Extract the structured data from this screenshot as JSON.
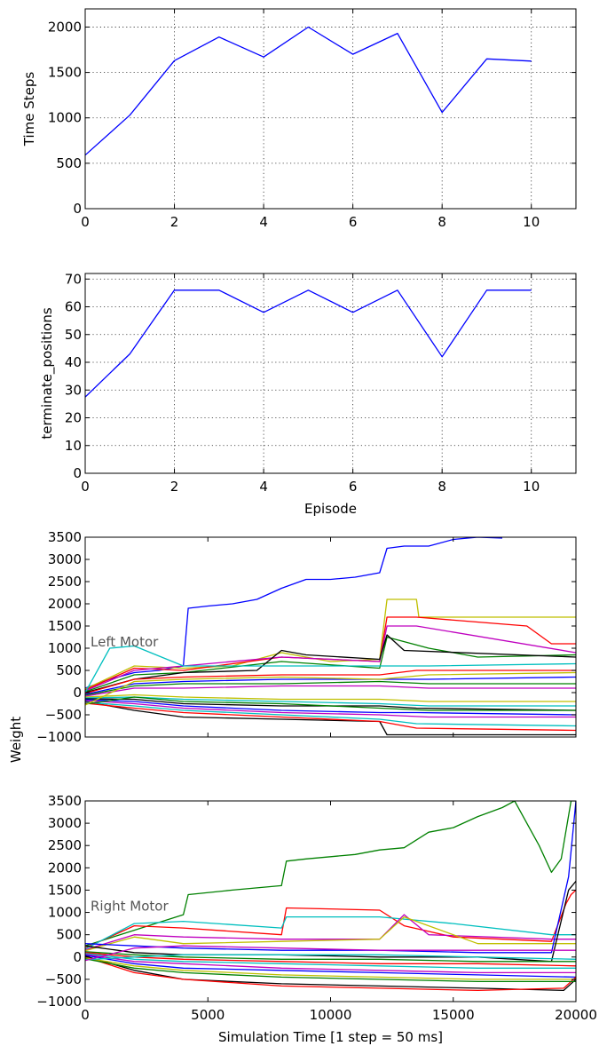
{
  "chart_data": [
    {
      "type": "line",
      "ylabel": "Time Steps",
      "xlabel": "",
      "xlim": [
        0,
        11
      ],
      "ylim": [
        0,
        2200
      ],
      "xticks": [
        0,
        2,
        4,
        6,
        8,
        10
      ],
      "yticks": [
        0,
        500,
        1000,
        1500,
        2000
      ],
      "grid": true,
      "series": [
        {
          "color": "#0000ff",
          "x": [
            0,
            1,
            2,
            3,
            4,
            5,
            6,
            7,
            8,
            9,
            10
          ],
          "y": [
            590,
            1030,
            1630,
            1890,
            1670,
            2000,
            1700,
            1930,
            1060,
            1650,
            1625
          ]
        }
      ]
    },
    {
      "type": "line",
      "ylabel": "terminate_positions",
      "xlabel": "Episode",
      "xlim": [
        0,
        11
      ],
      "ylim": [
        0,
        72
      ],
      "xticks": [
        0,
        2,
        4,
        6,
        8,
        10
      ],
      "yticks": [
        0,
        10,
        20,
        30,
        40,
        50,
        60,
        70
      ],
      "grid": true,
      "series": [
        {
          "color": "#0000ff",
          "x": [
            0,
            1,
            2,
            3,
            4,
            5,
            6,
            7,
            8,
            9,
            10
          ],
          "y": [
            27.5,
            43,
            66,
            66,
            58,
            66,
            58,
            66,
            42,
            66,
            66
          ]
        }
      ]
    },
    {
      "type": "line",
      "ylabel": "Weight",
      "annotation": "Left Motor",
      "xlim": [
        0,
        20000
      ],
      "ylim": [
        -1000,
        3500
      ],
      "yticks": [
        -1000,
        -500,
        0,
        500,
        1000,
        1500,
        2000,
        2500,
        3000,
        3500
      ],
      "grid": false,
      "series": [
        {
          "color": "#0000ff",
          "x": [
            0,
            1000,
            2000,
            3000,
            4000,
            4200,
            5000,
            6000,
            7000,
            8000,
            9000,
            10000,
            11000,
            12000,
            12300,
            13000,
            14000,
            15000,
            16000,
            17000
          ],
          "y": [
            100,
            300,
            450,
            500,
            600,
            1900,
            1950,
            2000,
            2100,
            2350,
            2550,
            2550,
            2600,
            2700,
            3250,
            3300,
            3300,
            3450,
            3500,
            3480
          ]
        },
        {
          "color": "#bfbf00",
          "x": [
            0,
            2000,
            4000,
            6000,
            8000,
            10000,
            12000,
            12300,
            13500,
            13600,
            20000
          ],
          "y": [
            80,
            600,
            550,
            600,
            900,
            700,
            750,
            2100,
            2100,
            1700,
            1700
          ]
        },
        {
          "color": "#ff0000",
          "x": [
            0,
            2000,
            4000,
            8000,
            12000,
            12300,
            13500,
            18000,
            19000,
            20000
          ],
          "y": [
            60,
            550,
            500,
            800,
            700,
            1700,
            1700,
            1500,
            1100,
            1100
          ]
        },
        {
          "color": "#bf00bf",
          "x": [
            0,
            2000,
            4000,
            8000,
            12000,
            12300,
            13500,
            20000
          ],
          "y": [
            40,
            500,
            600,
            800,
            700,
            1500,
            1500,
            900
          ]
        },
        {
          "color": "#008000",
          "x": [
            0,
            2000,
            4000,
            8000,
            12000,
            12300,
            14000,
            16000,
            20000
          ],
          "y": [
            20,
            400,
            450,
            700,
            550,
            1250,
            1000,
            800,
            850
          ]
        },
        {
          "color": "#000000",
          "x": [
            0,
            2000,
            4000,
            7000,
            8000,
            9000,
            12000,
            12300,
            13000,
            20000
          ],
          "y": [
            0,
            300,
            450,
            500,
            950,
            850,
            750,
            1300,
            950,
            800
          ]
        },
        {
          "color": "#00bfbf",
          "x": [
            0,
            1000,
            2000,
            4000,
            8000,
            12000,
            14000,
            20000
          ],
          "y": [
            0,
            1000,
            1050,
            600,
            600,
            600,
            600,
            650
          ]
        },
        {
          "color": "#ff0000",
          "x": [
            0,
            2000,
            4000,
            8000,
            12000,
            13500,
            20000
          ],
          "y": [
            -20,
            300,
            350,
            400,
            400,
            500,
            500
          ]
        },
        {
          "color": "#0000ff",
          "x": [
            0,
            2000,
            4000,
            8000,
            12000,
            14000,
            20000
          ],
          "y": [
            -40,
            200,
            250,
            300,
            300,
            300,
            350
          ]
        },
        {
          "color": "#008000",
          "x": [
            0,
            2000,
            4000,
            8000,
            12000,
            14000,
            20000
          ],
          "y": [
            -60,
            150,
            200,
            200,
            250,
            200,
            200
          ]
        },
        {
          "color": "#bf00bf",
          "x": [
            0,
            2000,
            4000,
            8000,
            12000,
            14000,
            20000
          ],
          "y": [
            -80,
            100,
            100,
            150,
            150,
            100,
            100
          ]
        },
        {
          "color": "#bfbf00",
          "x": [
            0,
            2000,
            4000,
            8000,
            12000,
            14000,
            20000
          ],
          "y": [
            -100,
            -50,
            -100,
            -150,
            -150,
            -200,
            -200
          ]
        },
        {
          "color": "#00bfbf",
          "x": [
            0,
            2000,
            4000,
            8000,
            12000,
            14000,
            20000
          ],
          "y": [
            -120,
            -100,
            -150,
            -200,
            -250,
            -300,
            -300
          ]
        },
        {
          "color": "#000000",
          "x": [
            0,
            2000,
            4000,
            8000,
            12000,
            13500,
            20000
          ],
          "y": [
            -140,
            -150,
            -250,
            -300,
            -300,
            -350,
            -400
          ]
        },
        {
          "color": "#0000ff",
          "x": [
            0,
            2000,
            4000,
            8000,
            12000,
            13500,
            20000
          ],
          "y": [
            -160,
            -200,
            -300,
            -400,
            -450,
            -450,
            -500
          ]
        },
        {
          "color": "#bf00bf",
          "x": [
            0,
            2000,
            4000,
            8000,
            12000,
            14000,
            20000
          ],
          "y": [
            -180,
            -250,
            -350,
            -450,
            -500,
            -550,
            -550
          ]
        },
        {
          "color": "#000000",
          "x": [
            0,
            2000,
            4000,
            8000,
            12000,
            12300,
            14000,
            20000
          ],
          "y": [
            -200,
            -400,
            -550,
            -600,
            -650,
            -950,
            -950,
            -950
          ]
        },
        {
          "color": "#00bfbf",
          "x": [
            0,
            2000,
            4000,
            8000,
            12000,
            13500,
            20000
          ],
          "y": [
            -220,
            -300,
            -400,
            -500,
            -600,
            -700,
            -750
          ]
        },
        {
          "color": "#ff0000",
          "x": [
            0,
            2000,
            4000,
            8000,
            12000,
            13500,
            20000
          ],
          "y": [
            -240,
            -350,
            -450,
            -550,
            -650,
            -800,
            -850
          ]
        },
        {
          "color": "#008000",
          "x": [
            0,
            2000,
            4000,
            8000,
            12000,
            14000,
            20000
          ],
          "y": [
            -260,
            -100,
            -200,
            -250,
            -350,
            -400,
            -400
          ]
        },
        {
          "color": "#bfbf00",
          "x": [
            0,
            2000,
            4000,
            8000,
            12000,
            14000,
            20000
          ],
          "y": [
            -280,
            250,
            300,
            350,
            300,
            400,
            450
          ]
        }
      ]
    },
    {
      "type": "line",
      "annotation": "Right Motor",
      "xlabel": "Simulation Time [1 step = 50 ms]",
      "xlim": [
        0,
        20000
      ],
      "ylim": [
        -1000,
        3500
      ],
      "xticks": [
        0,
        5000,
        10000,
        15000,
        20000
      ],
      "yticks": [
        -1000,
        -500,
        0,
        500,
        1000,
        1500,
        2000,
        2500,
        3000,
        3500
      ],
      "grid": false,
      "series": [
        {
          "color": "#008000",
          "x": [
            0,
            2000,
            4000,
            4200,
            6000,
            7000,
            8000,
            8200,
            9000,
            10000,
            11000,
            12000,
            13000,
            14000,
            15000,
            16000,
            17000,
            17500,
            18500,
            19000,
            19400,
            19800,
            20000
          ],
          "y": [
            250,
            600,
            950,
            1400,
            1500,
            1550,
            1600,
            2150,
            2200,
            2250,
            2300,
            2400,
            2450,
            2800,
            2900,
            3150,
            3350,
            3500,
            2500,
            1900,
            2200,
            3500,
            3500
          ]
        },
        {
          "color": "#ff0000",
          "x": [
            0,
            2000,
            4000,
            8000,
            8200,
            12000,
            13000,
            15000,
            17000,
            19000,
            19600,
            19800,
            20000
          ],
          "y": [
            200,
            700,
            650,
            500,
            1100,
            1050,
            700,
            450,
            400,
            350,
            1200,
            1400,
            1500
          ]
        },
        {
          "color": "#00bfbf",
          "x": [
            0,
            2000,
            4000,
            8000,
            8200,
            12000,
            15000,
            19000,
            20000
          ],
          "y": [
            180,
            750,
            800,
            650,
            900,
            900,
            750,
            500,
            500
          ]
        },
        {
          "color": "#bf00bf",
          "x": [
            0,
            2000,
            4000,
            8000,
            12000,
            13000,
            14000,
            19000,
            20000
          ],
          "y": [
            160,
            500,
            450,
            400,
            400,
            950,
            500,
            400,
            400
          ]
        },
        {
          "color": "#bfbf00",
          "x": [
            0,
            2000,
            4000,
            8000,
            12000,
            13000,
            16000,
            19000,
            20000
          ],
          "y": [
            140,
            450,
            300,
            350,
            400,
            900,
            300,
            300,
            300
          ]
        },
        {
          "color": "#0000ff",
          "x": [
            0,
            2000,
            4000,
            8000,
            12000,
            16000,
            19000,
            19700,
            20000
          ],
          "y": [
            300,
            250,
            200,
            150,
            150,
            100,
            100,
            1800,
            3500
          ]
        },
        {
          "color": "#000000",
          "x": [
            0,
            2000,
            4000,
            8000,
            12000,
            16000,
            19000,
            19700,
            20000
          ],
          "y": [
            250,
            100,
            50,
            50,
            0,
            0,
            -100,
            1500,
            1700
          ]
        },
        {
          "color": "#008000",
          "x": [
            0,
            2000,
            4000,
            8000,
            12000,
            16000,
            20000
          ],
          "y": [
            120,
            50,
            0,
            -50,
            -50,
            -100,
            -100
          ]
        },
        {
          "color": "#ff0000",
          "x": [
            0,
            2000,
            4000,
            8000,
            12000,
            16000,
            20000
          ],
          "y": [
            100,
            0,
            -50,
            -100,
            -150,
            -150,
            -200
          ]
        },
        {
          "color": "#00bfbf",
          "x": [
            0,
            2000,
            4000,
            8000,
            12000,
            16000,
            20000
          ],
          "y": [
            80,
            -50,
            -100,
            -150,
            -200,
            -250,
            -250
          ]
        },
        {
          "color": "#bf00bf",
          "x": [
            0,
            2000,
            4000,
            8000,
            12000,
            16000,
            20000
          ],
          "y": [
            60,
            -100,
            -150,
            -250,
            -300,
            -350,
            -350
          ]
        },
        {
          "color": "#0000ff",
          "x": [
            0,
            2000,
            4000,
            8000,
            12000,
            16000,
            20000
          ],
          "y": [
            40,
            -150,
            -250,
            -300,
            -350,
            -400,
            -450
          ]
        },
        {
          "color": "#000000",
          "x": [
            0,
            2000,
            4000,
            8000,
            12000,
            16000,
            19500,
            20000
          ],
          "y": [
            20,
            -300,
            -500,
            -600,
            -650,
            -700,
            -750,
            -500
          ]
        },
        {
          "color": "#ff0000",
          "x": [
            0,
            2000,
            4000,
            8000,
            12000,
            16000,
            19500,
            20000
          ],
          "y": [
            0,
            -350,
            -500,
            -650,
            -700,
            -750,
            -700,
            -450
          ]
        },
        {
          "color": "#bfbf00",
          "x": [
            0,
            2000,
            4000,
            8000,
            12000,
            16000,
            20000
          ],
          "y": [
            -20,
            -200,
            -300,
            -400,
            -450,
            -500,
            -500
          ]
        },
        {
          "color": "#008000",
          "x": [
            0,
            2000,
            4000,
            8000,
            12000,
            16000,
            20000
          ],
          "y": [
            -40,
            -250,
            -350,
            -450,
            -500,
            -550,
            -550
          ]
        },
        {
          "color": "#00bfbf",
          "x": [
            0,
            2000,
            4000,
            8000,
            12000,
            16000,
            20000
          ],
          "y": [
            -60,
            0,
            50,
            50,
            50,
            0,
            -50
          ]
        },
        {
          "color": "#bf00bf",
          "x": [
            0,
            2000,
            4000,
            8000,
            12000,
            16000,
            20000
          ],
          "y": [
            -80,
            200,
            250,
            200,
            150,
            150,
            150
          ]
        }
      ]
    }
  ]
}
